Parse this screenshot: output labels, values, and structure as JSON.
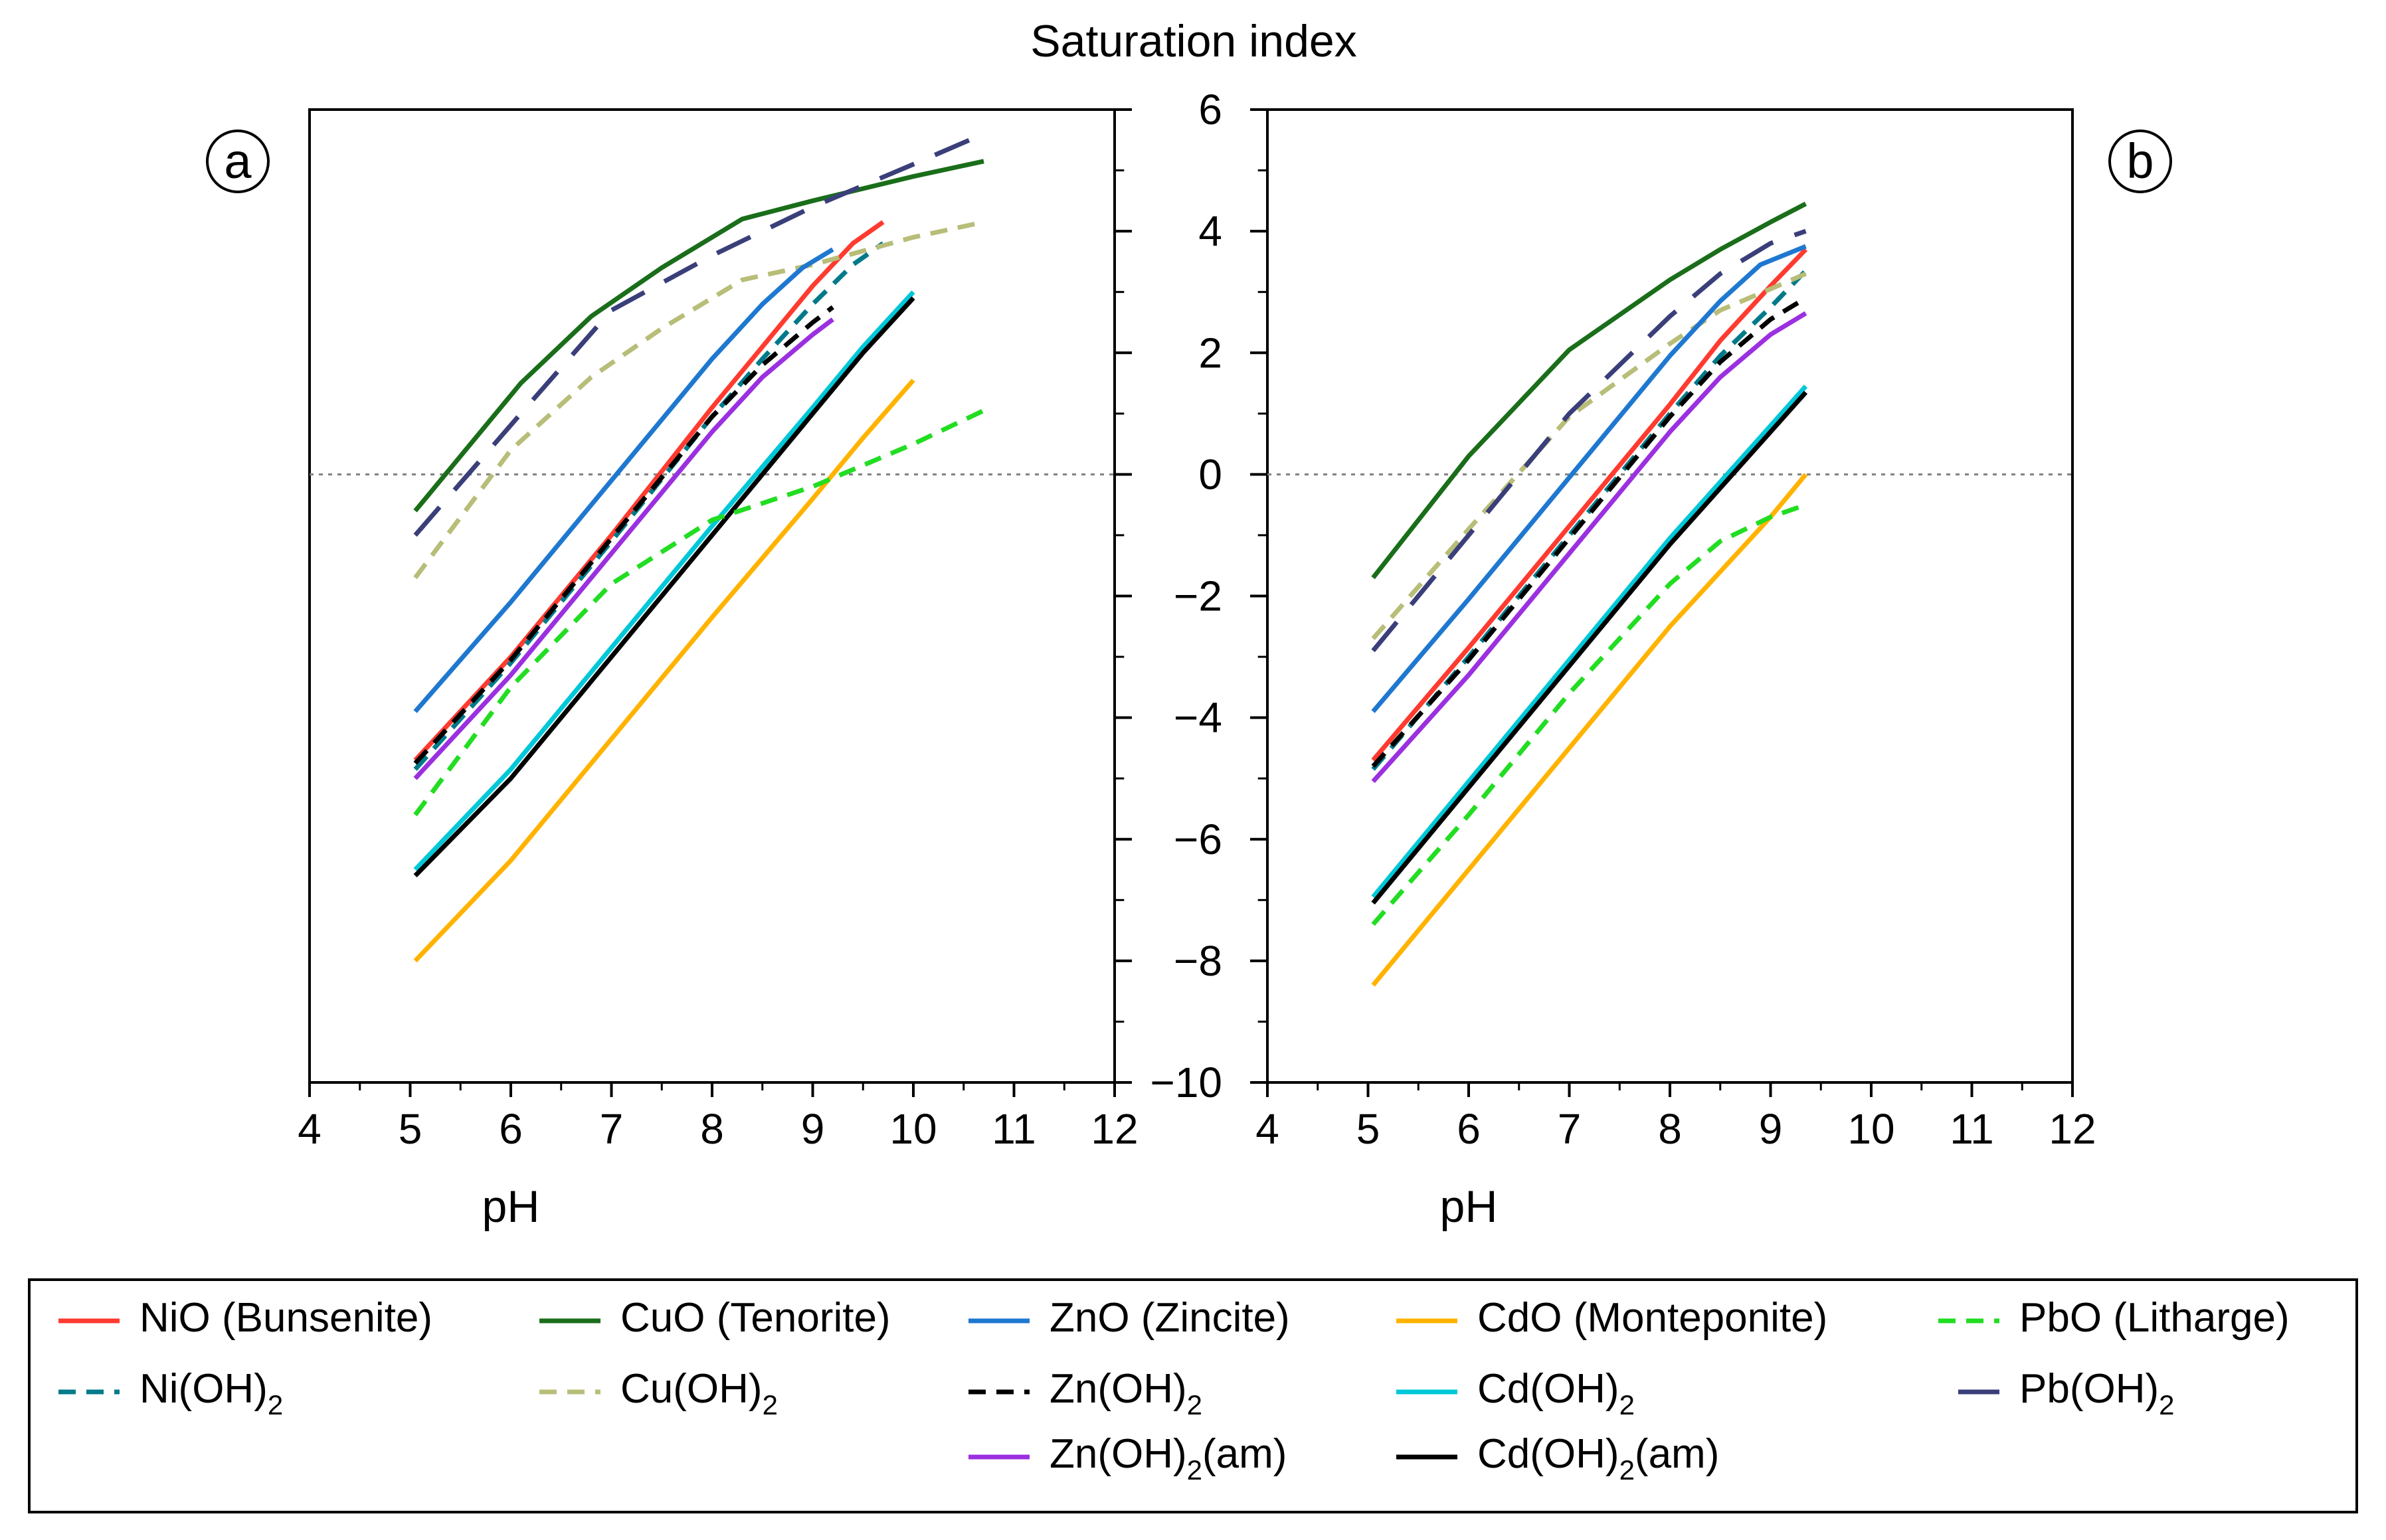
{
  "colors": {
    "NiO": "#ff3b30",
    "NiOH2": "#007a8a",
    "CuO": "#1a6e1a",
    "CuOH2": "#b8bd78",
    "ZnO": "#1f78d0",
    "ZnOH2": "#000000",
    "ZnOH2am": "#9b30e0",
    "CdO": "#ffb300",
    "CdOH2": "#00c8d8",
    "CdOH2am": "#000000",
    "PbO": "#22dd22",
    "PbOH2": "#3a3f7a"
  },
  "chart_data": [
    {
      "type": "line",
      "panel": "a",
      "title": "Saturation index",
      "xlabel": "pH",
      "ylabel": "Saturation index",
      "xlim": [
        4,
        12
      ],
      "ylim": [
        -10,
        6
      ],
      "xticks": [
        "4",
        "5",
        "6",
        "7",
        "8",
        "9",
        "10",
        "11",
        "12"
      ],
      "yticks": [
        "−10",
        "−8",
        "−6",
        "−4",
        "−2",
        "0",
        "2",
        "4",
        "6"
      ],
      "reference_line_y": 0,
      "series": [
        {
          "id": "NiO",
          "name": "NiO (Bunsenite)",
          "style": "solid",
          "color_key": "NiO",
          "x": [
            5.05,
            6,
            7,
            8,
            8.5,
            9,
            9.4,
            9.7
          ],
          "y": [
            -4.7,
            -3.0,
            -1.0,
            1.1,
            2.1,
            3.1,
            3.8,
            4.15
          ]
        },
        {
          "id": "NiOH2",
          "name": "Ni(OH)₂",
          "style": "dashed",
          "color_key": "NiOH2",
          "x": [
            5.05,
            6,
            7,
            8,
            8.5,
            9,
            9.4,
            9.7
          ],
          "y": [
            -4.85,
            -3.1,
            -1.1,
            0.95,
            1.9,
            2.8,
            3.45,
            3.8
          ]
        },
        {
          "id": "CuO",
          "name": "CuO (Tenorite)",
          "style": "solid",
          "color_key": "CuO",
          "x": [
            5.05,
            6.1,
            6.8,
            7.5,
            8.3,
            9,
            10,
            10.7
          ],
          "y": [
            -0.6,
            1.5,
            2.6,
            3.4,
            4.2,
            4.5,
            4.9,
            5.15
          ]
        },
        {
          "id": "CuOH2",
          "name": "Cu(OH)₂",
          "style": "dashed",
          "color_key": "CuOH2",
          "x": [
            5.05,
            6,
            6.8,
            7.5,
            8.3,
            9,
            10,
            10.7
          ],
          "y": [
            -1.7,
            0.4,
            1.6,
            2.4,
            3.2,
            3.45,
            3.9,
            4.15
          ]
        },
        {
          "id": "ZnO",
          "name": "ZnO (Zincite)",
          "style": "solid",
          "color_key": "ZnO",
          "x": [
            5.05,
            6,
            7,
            8,
            8.5,
            8.9,
            9.2
          ],
          "y": [
            -3.9,
            -2.1,
            -0.1,
            1.9,
            2.8,
            3.4,
            3.7
          ]
        },
        {
          "id": "ZnOH2",
          "name": "Zn(OH)₂",
          "style": "dashed",
          "color_key": "ZnOH2",
          "x": [
            5.05,
            6,
            7,
            8,
            8.5,
            9,
            9.2
          ],
          "y": [
            -4.75,
            -3.05,
            -1.05,
            0.95,
            1.8,
            2.5,
            2.75
          ]
        },
        {
          "id": "ZnOH2am",
          "name": "Zn(OH)₂(am)",
          "style": "solid",
          "color_key": "ZnOH2am",
          "x": [
            5.05,
            6,
            7,
            8,
            8.5,
            9,
            9.2
          ],
          "y": [
            -5.0,
            -3.3,
            -1.3,
            0.7,
            1.6,
            2.3,
            2.55
          ]
        },
        {
          "id": "CdO",
          "name": "CdO (Monteponite)",
          "style": "solid",
          "color_key": "CdO",
          "x": [
            5.05,
            6,
            7,
            8,
            9,
            9.5,
            10
          ],
          "y": [
            -8.0,
            -6.35,
            -4.35,
            -2.35,
            -0.4,
            0.6,
            1.55
          ]
        },
        {
          "id": "CdOH2",
          "name": "Cd(OH)₂",
          "style": "solid",
          "color_key": "CdOH2",
          "x": [
            5.05,
            6,
            7,
            8,
            9,
            9.5,
            10
          ],
          "y": [
            -6.5,
            -4.85,
            -2.85,
            -0.85,
            1.1,
            2.1,
            3.0
          ]
        },
        {
          "id": "CdOH2am",
          "name": "Cd(OH)₂(am)",
          "style": "solid",
          "color_key": "CdOH2am",
          "x": [
            5.05,
            6,
            7,
            8,
            9,
            9.5,
            10
          ],
          "y": [
            -6.6,
            -5.0,
            -3.0,
            -1.0,
            1.0,
            2.0,
            2.9
          ]
        },
        {
          "id": "PbO",
          "name": "PbO (Litharge)",
          "style": "dashed",
          "color_key": "PbO",
          "x": [
            5.05,
            6,
            7,
            8,
            9,
            10,
            10.7
          ],
          "y": [
            -5.6,
            -3.5,
            -1.8,
            -0.75,
            -0.2,
            0.5,
            1.05
          ]
        },
        {
          "id": "PbOH2",
          "name": "Pb(OH)₂",
          "style": "longdash",
          "color_key": "PbOH2",
          "x": [
            5.05,
            6.1,
            7,
            8,
            9,
            10,
            10.7
          ],
          "y": [
            -1.0,
            1.0,
            2.7,
            3.6,
            4.4,
            5.1,
            5.6
          ]
        }
      ]
    },
    {
      "type": "line",
      "panel": "b",
      "xlabel": "pH",
      "xlim": [
        4,
        12
      ],
      "ylim": [
        -10,
        6
      ],
      "xticks": [
        "4",
        "5",
        "6",
        "7",
        "8",
        "9",
        "10",
        "11",
        "12"
      ],
      "reference_line_y": 0,
      "series": [
        {
          "id": "NiO",
          "name": "NiO (Bunsenite)",
          "style": "solid",
          "color_key": "NiO",
          "x": [
            5.05,
            6,
            7,
            8,
            8.5,
            9,
            9.35
          ],
          "y": [
            -4.7,
            -2.85,
            -0.85,
            1.15,
            2.2,
            3.1,
            3.7
          ]
        },
        {
          "id": "NiOH2",
          "name": "Ni(OH)₂",
          "style": "dashed",
          "color_key": "NiOH2",
          "x": [
            5.05,
            6,
            7,
            8,
            8.5,
            9,
            9.35
          ],
          "y": [
            -4.85,
            -3.0,
            -1.0,
            1.0,
            1.95,
            2.75,
            3.35
          ]
        },
        {
          "id": "CuO",
          "name": "CuO (Tenorite)",
          "style": "solid",
          "color_key": "CuO",
          "x": [
            5.05,
            6,
            7,
            8,
            8.5,
            9,
            9.35
          ],
          "y": [
            -1.7,
            0.3,
            2.05,
            3.2,
            3.7,
            4.15,
            4.45
          ]
        },
        {
          "id": "CuOH2",
          "name": "Cu(OH)₂",
          "style": "dashed",
          "color_key": "CuOH2",
          "x": [
            5.05,
            6,
            7,
            8,
            8.5,
            9,
            9.35
          ],
          "y": [
            -2.7,
            -0.9,
            0.95,
            2.15,
            2.7,
            3.05,
            3.3
          ]
        },
        {
          "id": "ZnO",
          "name": "ZnO (Zincite)",
          "style": "solid",
          "color_key": "ZnO",
          "x": [
            5.05,
            6,
            7,
            8,
            8.5,
            8.9,
            9.35
          ],
          "y": [
            -3.9,
            -2.05,
            -0.05,
            1.95,
            2.85,
            3.45,
            3.75
          ]
        },
        {
          "id": "ZnOH2",
          "name": "Zn(OH)₂",
          "style": "dashed",
          "color_key": "ZnOH2",
          "x": [
            5.05,
            6,
            7,
            8,
            8.5,
            9,
            9.35
          ],
          "y": [
            -4.8,
            -3.05,
            -1.05,
            0.95,
            1.85,
            2.55,
            2.9
          ]
        },
        {
          "id": "ZnOH2am",
          "name": "Zn(OH)₂(am)",
          "style": "solid",
          "color_key": "ZnOH2am",
          "x": [
            5.05,
            6,
            7,
            8,
            8.5,
            9,
            9.35
          ],
          "y": [
            -5.05,
            -3.3,
            -1.3,
            0.7,
            1.6,
            2.3,
            2.65
          ]
        },
        {
          "id": "CdO",
          "name": "CdO (Monteponite)",
          "style": "solid",
          "color_key": "CdO",
          "x": [
            5.05,
            6,
            7,
            8,
            9,
            9.35
          ],
          "y": [
            -8.4,
            -6.5,
            -4.5,
            -2.5,
            -0.7,
            0.0
          ]
        },
        {
          "id": "CdOH2",
          "name": "Cd(OH)₂",
          "style": "solid",
          "color_key": "CdOH2",
          "x": [
            5.05,
            6,
            7,
            8,
            9,
            9.35
          ],
          "y": [
            -6.95,
            -5.05,
            -3.05,
            -1.05,
            0.8,
            1.45
          ]
        },
        {
          "id": "CdOH2am",
          "name": "Cd(OH)₂(am)",
          "style": "solid",
          "color_key": "CdOH2am",
          "x": [
            5.05,
            6,
            7,
            8,
            9,
            9.35
          ],
          "y": [
            -7.05,
            -5.15,
            -3.15,
            -1.15,
            0.7,
            1.35
          ]
        },
        {
          "id": "PbO",
          "name": "PbO (Litharge)",
          "style": "dashed",
          "color_key": "PbO",
          "x": [
            5.05,
            6,
            7,
            8,
            8.5,
            9,
            9.35
          ],
          "y": [
            -7.4,
            -5.6,
            -3.6,
            -1.8,
            -1.1,
            -0.7,
            -0.5
          ]
        },
        {
          "id": "PbOH2",
          "name": "Pb(OH)₂",
          "style": "longdash",
          "color_key": "PbOH2",
          "x": [
            5.05,
            6,
            7,
            8,
            8.5,
            9,
            9.35
          ],
          "y": [
            -2.9,
            -1.0,
            1.0,
            2.6,
            3.3,
            3.8,
            4.0
          ]
        }
      ]
    }
  ],
  "legend": {
    "items": [
      {
        "series_id": "NiO",
        "label": "NiO (Bunsenite)"
      },
      {
        "series_id": "CuO",
        "label": "CuO (Tenorite)"
      },
      {
        "series_id": "ZnO",
        "label": "ZnO (Zincite)"
      },
      {
        "series_id": "CdO",
        "label": "CdO (Monteponite)"
      },
      {
        "series_id": "PbO",
        "label": "PbO (Litharge)"
      },
      {
        "series_id": "NiOH2",
        "label_main": "Ni(OH)",
        "label_sub": "2",
        "label_tail": ""
      },
      {
        "series_id": "CuOH2",
        "label_main": "Cu(OH)",
        "label_sub": "2",
        "label_tail": ""
      },
      {
        "series_id": "ZnOH2",
        "label_main": "Zn(OH)",
        "label_sub": "2",
        "label_tail": ""
      },
      {
        "series_id": "CdOH2",
        "label_main": "Cd(OH)",
        "label_sub": "2",
        "label_tail": ""
      },
      {
        "series_id": "PbOH2",
        "label_main": "Pb(OH)",
        "label_sub": "2",
        "label_tail": ""
      },
      {
        "series_id": "ZnOH2am",
        "label_main": "Zn(OH)",
        "label_sub": "2",
        "label_tail": "(am)"
      },
      {
        "series_id": "CdOH2am",
        "label_main": "Cd(OH)",
        "label_sub": "2",
        "label_tail": "(am)"
      }
    ]
  },
  "panel_labels": {
    "a": "a",
    "b": "b"
  }
}
